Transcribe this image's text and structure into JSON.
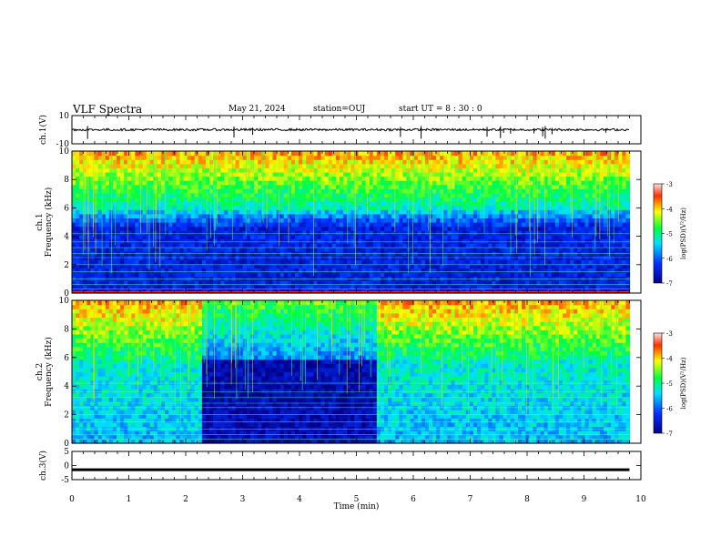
{
  "header": {
    "title": "VLF Spectra",
    "date": "May 21, 2024",
    "station": "station=OUJ",
    "start": "start  UT  =   8  : 30 : 0"
  },
  "colors": {
    "spectrogram_low": "#00008b",
    "spectrogram_high": "#b00000",
    "trace": "#000000"
  },
  "chart_data": [
    {
      "type": "line",
      "panel": "ch1-waveform",
      "ylabel": "ch.1(V)",
      "ylim": [
        -10,
        10
      ],
      "yticks": [
        "10",
        "-10"
      ],
      "xlim": [
        0,
        10
      ],
      "baseline": 0,
      "description_values": {
        "noise_amplitude": 1
      }
    },
    {
      "type": "heatmap",
      "panel": "ch1-spectrogram",
      "ylabel_line1": "ch.1",
      "ylabel_line2": "Frequency (kHz)",
      "ylim": [
        0,
        10
      ],
      "yticks": [
        "0",
        "2",
        "4",
        "6",
        "8",
        "10"
      ],
      "xlim": [
        0,
        9.8
      ],
      "colorbar": {
        "label": "log(PSD)(V²/Hz)",
        "range": [
          -7,
          -3
        ],
        "ticks": [
          "-3",
          "-4",
          "-5",
          "-6",
          "-7"
        ]
      },
      "quiet_intervals_min": []
    },
    {
      "type": "heatmap",
      "panel": "ch2-spectrogram",
      "ylabel_line1": "ch.2",
      "ylabel_line2": "Frequency (kHz)",
      "ylim": [
        0,
        10
      ],
      "yticks": [
        "0",
        "2",
        "4",
        "6",
        "8",
        "10"
      ],
      "xlim": [
        0,
        9.8
      ],
      "colorbar": {
        "label": "log(PSD)(V²/Hz)",
        "range": [
          -7,
          -3
        ],
        "ticks": [
          "-3",
          "-4",
          "-5",
          "-6",
          "-7"
        ]
      },
      "quiet_intervals_min": [
        [
          2.3,
          5.35
        ]
      ]
    },
    {
      "type": "line",
      "panel": "ch3-waveform",
      "ylabel": "ch.3(V)",
      "ylim": [
        -5,
        5
      ],
      "yticks": [
        "5",
        "0",
        "-5"
      ],
      "xlim": [
        0,
        10
      ],
      "baseline": -1.5
    }
  ],
  "xaxis": {
    "label": "Time (min)",
    "ticks": [
      "0",
      "1",
      "2",
      "3",
      "4",
      "5",
      "6",
      "7",
      "8",
      "9",
      "10"
    ],
    "range": [
      0,
      10
    ]
  }
}
